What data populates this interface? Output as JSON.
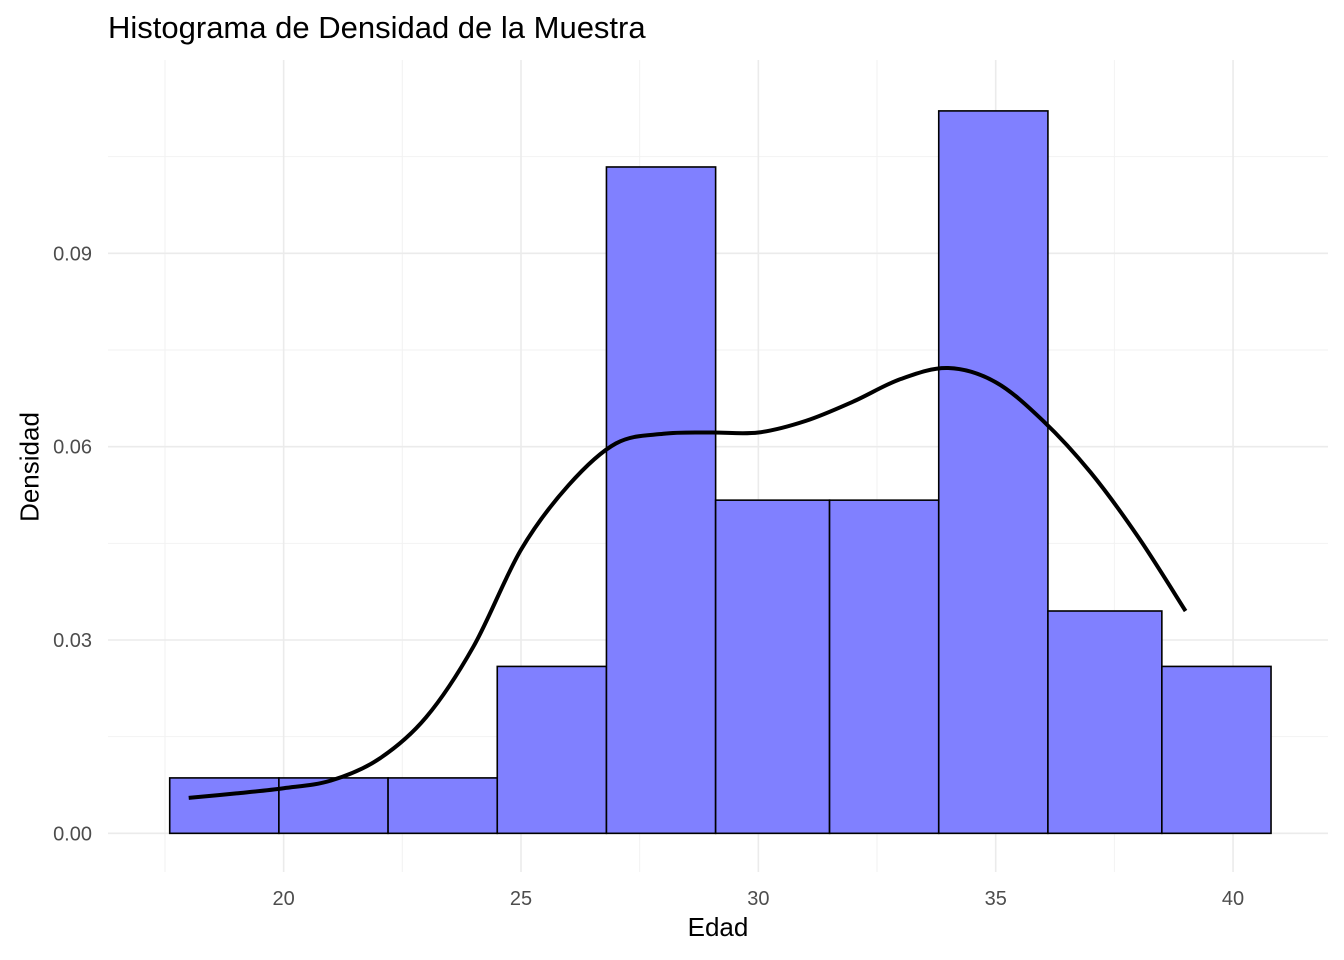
{
  "chart_data": {
    "type": "bar",
    "title": "Histograma de Densidad de la Muestra",
    "xlabel": "Edad",
    "ylabel": "Densidad",
    "xlim": [
      16.3,
      42.0
    ],
    "ylim": [
      -0.006,
      0.12
    ],
    "x_ticks": [
      20,
      25,
      30,
      35,
      40
    ],
    "x_tick_labels": [
      "20",
      "25",
      "30",
      "35",
      "40"
    ],
    "y_ticks": [
      0.0,
      0.03,
      0.06,
      0.09
    ],
    "y_tick_labels": [
      "0.00",
      "0.03",
      "0.06",
      "0.09"
    ],
    "grid": true,
    "bins": [
      {
        "x0": 17.6,
        "x1": 19.9,
        "density": 0.0086
      },
      {
        "x0": 19.9,
        "x1": 22.2,
        "density": 0.0086
      },
      {
        "x0": 22.2,
        "x1": 24.5,
        "density": 0.0086
      },
      {
        "x0": 24.5,
        "x1": 26.8,
        "density": 0.0259
      },
      {
        "x0": 26.8,
        "x1": 29.1,
        "density": 0.1034
      },
      {
        "x0": 29.1,
        "x1": 31.5,
        "density": 0.0517
      },
      {
        "x0": 31.5,
        "x1": 33.8,
        "density": 0.0517
      },
      {
        "x0": 33.8,
        "x1": 36.1,
        "density": 0.1121
      },
      {
        "x0": 36.1,
        "x1": 38.5,
        "density": 0.0345
      },
      {
        "x0": 38.5,
        "x1": 40.8,
        "density": 0.0259
      }
    ],
    "bar_fill": "#8080ff",
    "bar_stroke": "#000000",
    "density_curve": {
      "color": "#000000",
      "x": [
        18.0,
        19.0,
        20.0,
        21.0,
        22.0,
        23.0,
        24.0,
        25.0,
        26.0,
        27.0,
        28.0,
        29.0,
        30.0,
        31.0,
        32.0,
        33.0,
        34.0,
        35.0,
        36.0,
        37.0,
        38.0,
        39.0
      ],
      "y": [
        0.0055,
        0.0062,
        0.007,
        0.0082,
        0.0115,
        0.018,
        0.029,
        0.044,
        0.054,
        0.0605,
        0.062,
        0.0622,
        0.0622,
        0.064,
        0.067,
        0.0705,
        0.0722,
        0.07,
        0.064,
        0.056,
        0.046,
        0.0345
      ]
    }
  }
}
